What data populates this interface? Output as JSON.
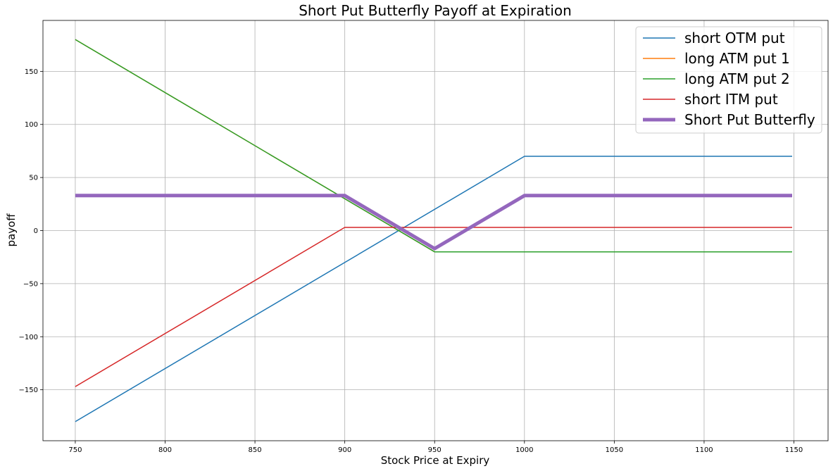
{
  "chart_data": {
    "type": "line",
    "title": "Short Put Butterfly Payoff at Expiration",
    "xlabel": "Stock Price at Expiry",
    "ylabel": "payoff",
    "xlim": [
      732,
      1169
    ],
    "ylim": [
      -198,
      198
    ],
    "xticks": [
      750,
      800,
      850,
      900,
      950,
      1000,
      1050,
      1100,
      1150
    ],
    "yticks": [
      -150,
      -100,
      -50,
      0,
      50,
      100,
      150
    ],
    "xtick_labels": [
      "750",
      "800",
      "850",
      "900",
      "950",
      "1000",
      "1050",
      "1100",
      "1150"
    ],
    "ytick_labels": [
      "−150",
      "−100",
      "−50",
      "0",
      "50",
      "100",
      "150"
    ],
    "grid": true,
    "legend": "top-right",
    "series": [
      {
        "name": "short OTM put",
        "color": "#1f77b4",
        "width": 1.5,
        "x": [
          750,
          1000,
          1149
        ],
        "y": [
          -180,
          70,
          70
        ]
      },
      {
        "name": "long ATM put 1",
        "color": "#ff7f0e",
        "width": 1.5,
        "x": [
          750,
          950,
          1149
        ],
        "y": [
          180,
          -20,
          -20
        ]
      },
      {
        "name": "long ATM put 2",
        "color": "#2ca02c",
        "width": 1.5,
        "x": [
          750,
          950,
          1149
        ],
        "y": [
          180,
          -20,
          -20
        ]
      },
      {
        "name": "short ITM put",
        "color": "#d62728",
        "width": 1.5,
        "x": [
          750,
          900,
          1149
        ],
        "y": [
          -147,
          3,
          3
        ]
      },
      {
        "name": "Short Put Butterfly",
        "color": "#9467bd",
        "width": 5,
        "x": [
          750,
          900,
          950,
          1000,
          1149
        ],
        "y": [
          33,
          33,
          -17,
          33,
          33
        ]
      }
    ]
  }
}
